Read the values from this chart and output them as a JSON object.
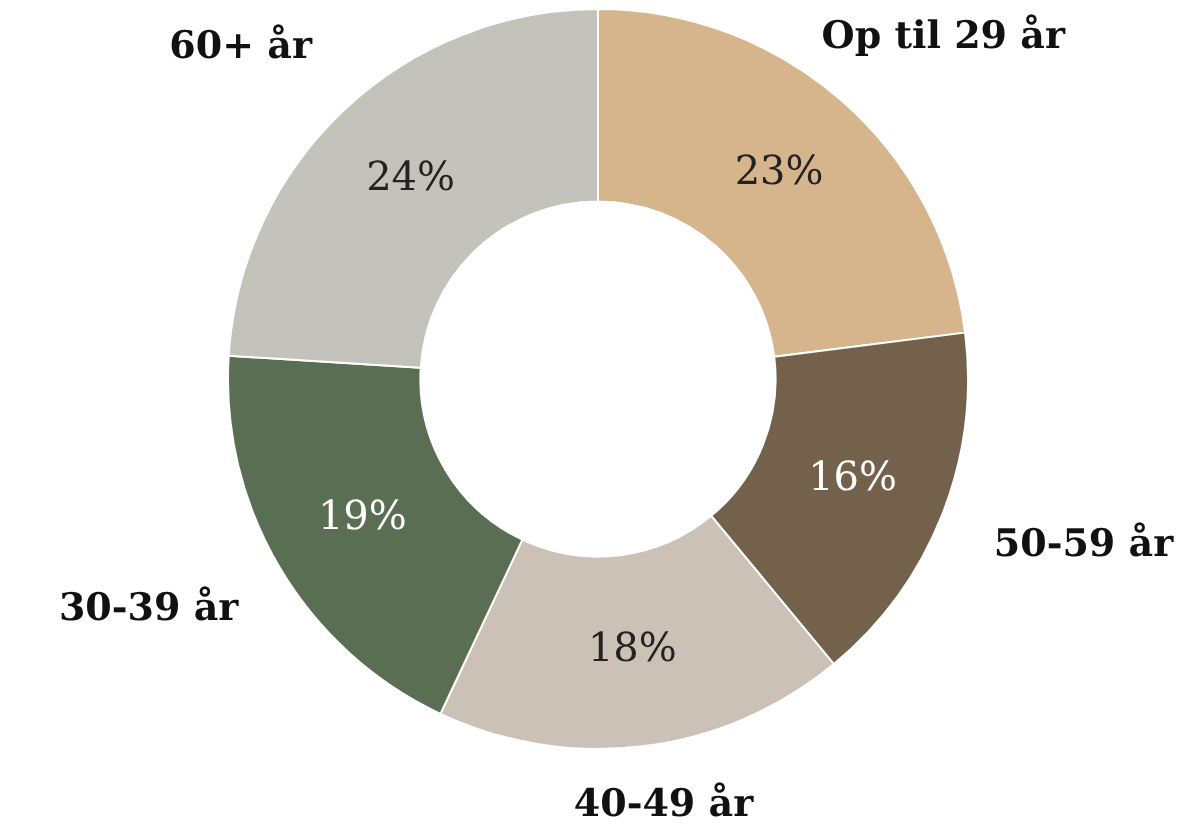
{
  "chart_data": {
    "type": "donut",
    "categories": [
      "Op til 29 år",
      "50-59 år",
      "40-49 år",
      "30-39 år",
      "60+ år"
    ],
    "values": [
      23,
      16,
      18,
      19,
      24
    ],
    "colors": [
      "#d6b48c",
      "#74614b",
      "#cbc1b6",
      "#5a6e53",
      "#c3c3bb"
    ],
    "value_labels": [
      "23%",
      "16%",
      "18%",
      "19%",
      "24%"
    ],
    "legend": false
  }
}
